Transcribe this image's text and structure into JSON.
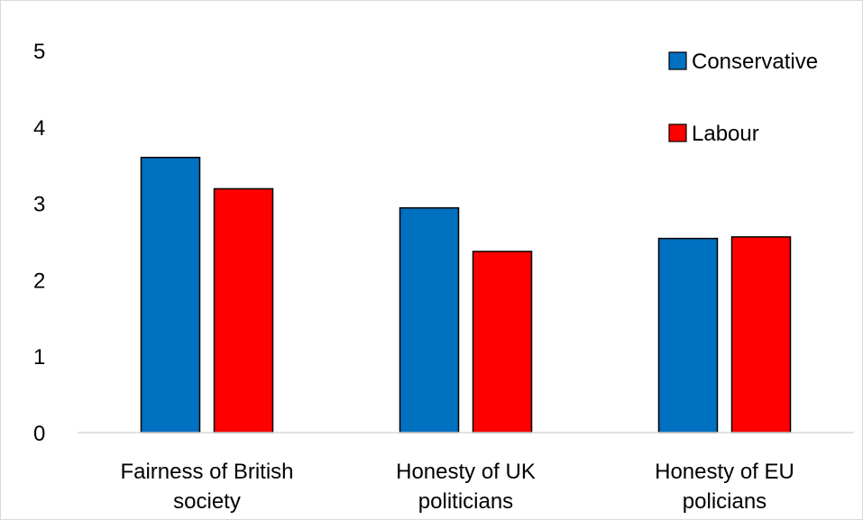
{
  "chart_data": {
    "type": "bar",
    "categories": [
      [
        "Fairness of British",
        "society"
      ],
      [
        "Honesty of UK",
        "politicians"
      ],
      [
        "Honesty of EU",
        "policians"
      ]
    ],
    "series": [
      {
        "name": "Conservative",
        "values": [
          3.6,
          2.94,
          2.54
        ],
        "color": "#0070c0"
      },
      {
        "name": "Labour",
        "values": [
          3.19,
          2.37,
          2.56
        ],
        "color": "#ff0000"
      }
    ],
    "ylim": [
      0,
      5
    ],
    "yticks": [
      "0",
      "1",
      "2",
      "3",
      "4",
      "5"
    ],
    "grid": false,
    "legend": "top-right",
    "bar_stroke": "#000000"
  }
}
